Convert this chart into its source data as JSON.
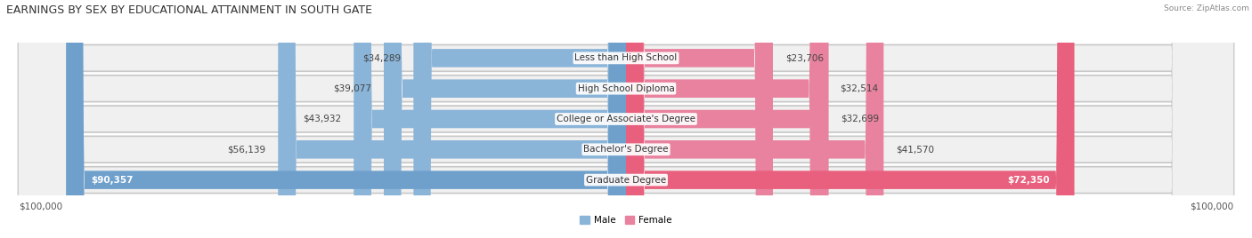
{
  "title": "EARNINGS BY SEX BY EDUCATIONAL ATTAINMENT IN SOUTH GATE",
  "source": "Source: ZipAtlas.com",
  "categories": [
    "Less than High School",
    "High School Diploma",
    "College or Associate's Degree",
    "Bachelor's Degree",
    "Graduate Degree"
  ],
  "male_values": [
    34289,
    39077,
    43932,
    56139,
    90357
  ],
  "female_values": [
    23706,
    32514,
    32699,
    41570,
    72350
  ],
  "male_color": "#8ab4d8",
  "female_color": "#e8829e",
  "male_color_last": "#6fa0cc",
  "female_color_last": "#e8607e",
  "row_bg_color": "#e8e8e8",
  "row_border_color": "#d0d0d0",
  "bg_color": "#ffffff",
  "max_value": 100000,
  "xlabel_left": "$100,000",
  "xlabel_right": "$100,000",
  "title_fontsize": 9,
  "label_fontsize": 7.5,
  "tick_fontsize": 7.5,
  "legend_male": "Male",
  "legend_female": "Female"
}
